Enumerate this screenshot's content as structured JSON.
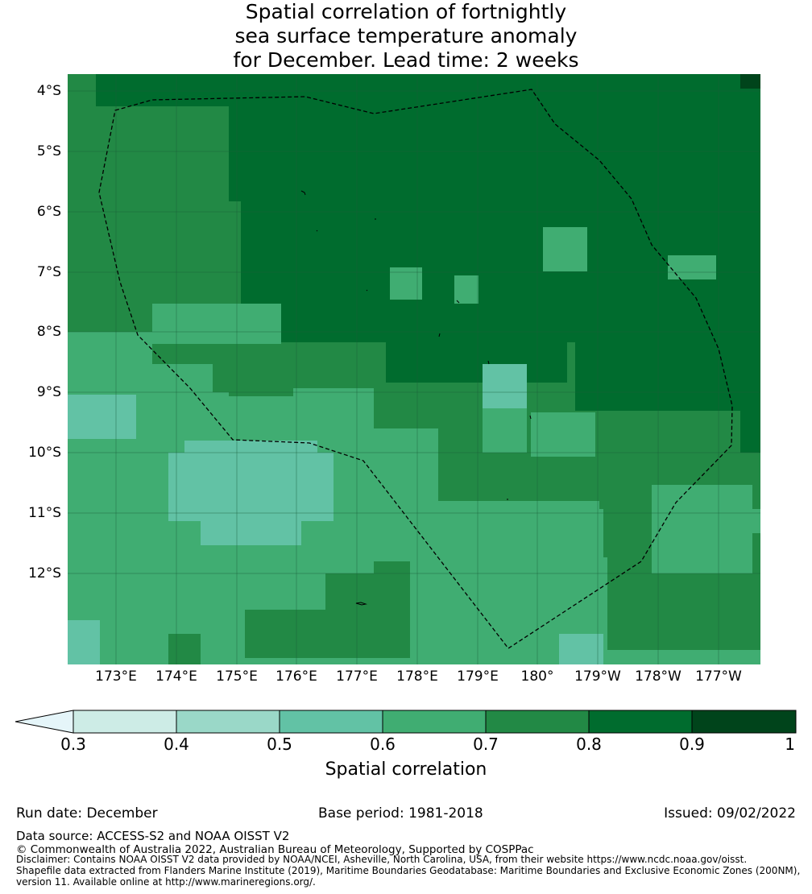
{
  "title": {
    "line1": "Spatial correlation of fortnightly",
    "line2": "sea surface temperature anomaly",
    "line3": "for December. Lead time: 2 weeks"
  },
  "map": {
    "lat_labels": [
      "4°S",
      "5°S",
      "6°S",
      "7°S",
      "8°S",
      "9°S",
      "10°S",
      "11°S",
      "12°S"
    ],
    "lon_labels": [
      "173°E",
      "174°E",
      "175°E",
      "176°E",
      "177°E",
      "178°E",
      "179°E",
      "180°",
      "179°W",
      "178°W",
      "177°W"
    ],
    "eez_boundary": "dashed",
    "colors": {
      "0.3-0.4": "#cdece6",
      "0.4-0.5": "#9ad8c8",
      "0.5-0.6": "#62c2a5",
      "0.6-0.7": "#40ad72",
      "0.7-0.8": "#228945",
      "0.8-0.9": "#006c2e",
      "0.9-1": "#00441b",
      "under": "#e5f5f9"
    }
  },
  "colorbar": {
    "ticks": [
      "0.3",
      "0.4",
      "0.5",
      "0.6",
      "0.7",
      "0.8",
      "0.9",
      "1"
    ],
    "label": "Spatial correlation"
  },
  "footer": {
    "run_date": "Run date: December",
    "base_period": "Base period: 1981-2018",
    "issued": "Issued: 09/02/2022",
    "data_source": "Data source: ACCESS-S2 and NOAA OISST V2",
    "copyright": "© Commonwealth of Australia 2022, Australian Bureau of Meteorology, Supported by COSPPac",
    "disclaimer1": "Disclaimer: Contains NOAA OISST V2 data provided by NOAA/NCEI, Asheville, North Carolina, USA, from their website https://www.ncdc.noaa.gov/oisst.",
    "disclaimer2": "Shapefile data extracted from Flanders Marine Institute (2019), Maritime Boundaries Geodatabase: Maritime Boundaries and Exclusive Economic Zones (200NM),",
    "disclaimer3": "version 11. Available online at http://www.marineregions.org/."
  }
}
